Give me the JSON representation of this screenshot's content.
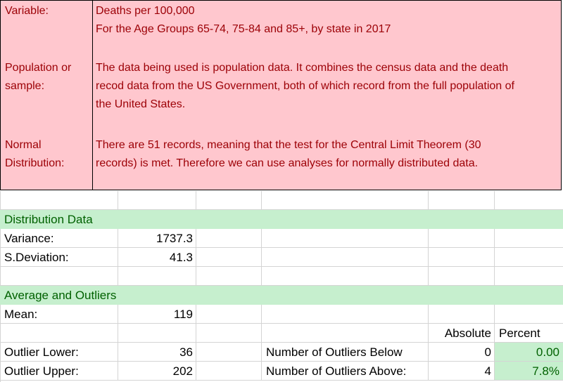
{
  "description": {
    "variable_label": "Variable:",
    "variable_line1": "Deaths per 100,000",
    "variable_line2": "For the Age Groups 65-74, 75-84 and 85+, by state in 2017",
    "population_label_line1": "Population or",
    "population_label_line2": "sample:",
    "population_line1": "The data being used is population data. It combines the census data and the death",
    "population_line2": "recod data from the US Government, both of which record from the full population of",
    "population_line3": "the United States.",
    "normal_label_line1": "Normal",
    "normal_label_line2": "Distribution:",
    "normal_line1": "There are 51 records, meaning that the test for the Central Limit Theorem (30",
    "normal_line2": "records) is met. Therefore we can use analyses for normally distributed data."
  },
  "distribution": {
    "header": "Distribution Data",
    "variance_label": "Variance:",
    "variance_value": "1737.3",
    "sd_label": "S.Deviation:",
    "sd_value": "41.3"
  },
  "outliers": {
    "header": "Average and Outliers",
    "mean_label": "Mean:",
    "mean_value": "119",
    "absolute_header": "Absolute",
    "percent_header": "Percent",
    "lower_label": "Outlier Lower:",
    "lower_value": "36",
    "below_label": "Number of Outliers Below",
    "below_absolute": "0",
    "below_percent": "0.00",
    "upper_label": "Outlier Upper:",
    "upper_value": "202",
    "above_label": "Number of Outliers Above:",
    "above_absolute": "4",
    "above_percent": "7.8%"
  },
  "colors": {
    "pink_fill": "#ffc7ce",
    "pink_text": "#9c0006",
    "green_fill": "#c6efce",
    "green_text": "#006100"
  }
}
